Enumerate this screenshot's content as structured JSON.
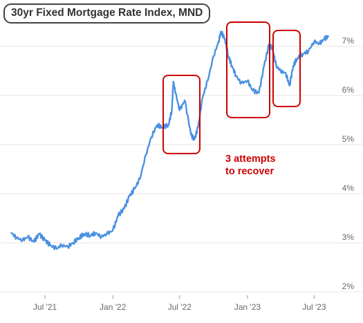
{
  "title": "30yr Fixed Mortgage Rate Index, MND",
  "annotation": [
    "3 attempts",
    "to recover"
  ],
  "colors": {
    "line": "#4a90e2",
    "highlight": "#cc0000",
    "grid": "#e6e6e6"
  },
  "chart_data": {
    "type": "line",
    "title": "30yr Fixed Mortgage Rate Index, MND",
    "xlabel": "",
    "ylabel": "",
    "y_ticks": [
      "2%",
      "3%",
      "4%",
      "5%",
      "6%",
      "7%"
    ],
    "x_ticks": [
      "Jul '21",
      "Jan '22",
      "Jul '22",
      "Jan '23",
      "Jul '23"
    ],
    "ylim": [
      2,
      7.8
    ],
    "grid": "horizontal",
    "series": [
      {
        "values": [
          [
            "2021-04-01",
            3.2
          ],
          [
            "2021-04-15",
            3.1
          ],
          [
            "2021-05-01",
            3.05
          ],
          [
            "2021-05-15",
            3.12
          ],
          [
            "2021-06-01",
            3.02
          ],
          [
            "2021-06-15",
            3.18
          ],
          [
            "2021-07-01",
            3.05
          ],
          [
            "2021-07-15",
            2.95
          ],
          [
            "2021-08-01",
            2.88
          ],
          [
            "2021-08-15",
            2.95
          ],
          [
            "2021-09-01",
            2.92
          ],
          [
            "2021-09-15",
            3.0
          ],
          [
            "2021-10-01",
            3.1
          ],
          [
            "2021-10-15",
            3.18
          ],
          [
            "2021-11-01",
            3.15
          ],
          [
            "2021-11-15",
            3.2
          ],
          [
            "2021-12-01",
            3.12
          ],
          [
            "2021-12-15",
            3.18
          ],
          [
            "2022-01-01",
            3.25
          ],
          [
            "2022-01-15",
            3.55
          ],
          [
            "2022-02-01",
            3.7
          ],
          [
            "2022-02-15",
            3.95
          ],
          [
            "2022-03-01",
            4.1
          ],
          [
            "2022-03-15",
            4.3
          ],
          [
            "2022-04-01",
            4.8
          ],
          [
            "2022-04-15",
            5.15
          ],
          [
            "2022-05-01",
            5.4
          ],
          [
            "2022-05-15",
            5.35
          ],
          [
            "2022-06-01",
            5.4
          ],
          [
            "2022-06-10",
            5.7
          ],
          [
            "2022-06-14",
            6.28
          ],
          [
            "2022-06-20",
            6.05
          ],
          [
            "2022-07-01",
            5.7
          ],
          [
            "2022-07-15",
            5.9
          ],
          [
            "2022-08-01",
            5.2
          ],
          [
            "2022-08-10",
            5.1
          ],
          [
            "2022-08-20",
            5.35
          ],
          [
            "2022-09-01",
            5.95
          ],
          [
            "2022-09-15",
            6.3
          ],
          [
            "2022-10-01",
            6.8
          ],
          [
            "2022-10-15",
            7.1
          ],
          [
            "2022-10-21",
            7.3
          ],
          [
            "2022-11-01",
            7.15
          ],
          [
            "2022-11-10",
            6.8
          ],
          [
            "2022-11-20",
            6.6
          ],
          [
            "2022-12-01",
            6.4
          ],
          [
            "2022-12-15",
            6.25
          ],
          [
            "2023-01-01",
            6.3
          ],
          [
            "2023-01-15",
            6.1
          ],
          [
            "2023-02-01",
            6.05
          ],
          [
            "2023-02-15",
            6.6
          ],
          [
            "2023-03-01",
            7.05
          ],
          [
            "2023-03-10",
            6.95
          ],
          [
            "2023-03-20",
            6.6
          ],
          [
            "2023-04-01",
            6.5
          ],
          [
            "2023-04-15",
            6.45
          ],
          [
            "2023-04-25",
            6.2
          ],
          [
            "2023-05-05",
            6.6
          ],
          [
            "2023-05-15",
            6.75
          ],
          [
            "2023-06-01",
            6.85
          ],
          [
            "2023-06-15",
            6.9
          ],
          [
            "2023-07-01",
            7.1
          ],
          [
            "2023-07-15",
            7.05
          ],
          [
            "2023-07-28",
            7.15
          ],
          [
            "2023-08-08",
            7.2
          ]
        ]
      }
    ]
  }
}
